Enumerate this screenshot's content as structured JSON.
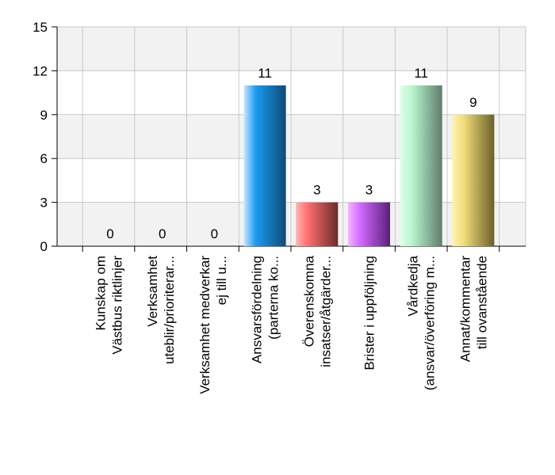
{
  "chart_data": {
    "type": "bar",
    "categories": [
      [
        "Kunskap om",
        "Västbus riktlinjer"
      ],
      [
        "Verksamhet",
        "uteblir/prioriterar..."
      ],
      [
        "Verksamhet medverkar",
        "ej till u..."
      ],
      [
        "Ansvarsfördelning",
        "(parterna ko..."
      ],
      [
        "Överenskomna",
        "insatser/åtgärder..."
      ],
      [
        "Brister i uppföljning"
      ],
      [
        "Vårdkedja",
        "(ansvar/överföring m..."
      ],
      [
        "Annat/kommentar",
        "till ovanstående"
      ]
    ],
    "values": [
      0,
      0,
      0,
      11,
      3,
      3,
      11,
      9
    ],
    "data_labels": [
      "0",
      "0",
      "0",
      "11",
      "3",
      "3",
      "11",
      "9"
    ],
    "ylim": [
      0,
      15
    ],
    "yticks": [
      0,
      3,
      6,
      9,
      12,
      15
    ],
    "ytick_labels": [
      "0",
      "3",
      "6",
      "9",
      "12",
      "15"
    ],
    "title": "",
    "xlabel": "",
    "ylabel": "",
    "grid": true,
    "bar_colors": [
      [
        "#c9e6ff",
        "#1a9bf0",
        "#0e4a78"
      ],
      [
        "#c9e6ff",
        "#1a9bf0",
        "#0e4a78"
      ],
      [
        "#c9e6ff",
        "#1a9bf0",
        "#0e4a78"
      ],
      [
        "#c9e6ff",
        "#1a9bf0",
        "#0e4a78"
      ],
      [
        "#ffb3b3",
        "#ff6f6f",
        "#6b2a2a"
      ],
      [
        "#f0b8ff",
        "#d46aff",
        "#5a1f7a"
      ],
      [
        "#dfffe9",
        "#b8f5cf",
        "#5f7d6a"
      ],
      [
        "#fff3b0",
        "#f0dc78",
        "#6b5f2a"
      ]
    ]
  }
}
